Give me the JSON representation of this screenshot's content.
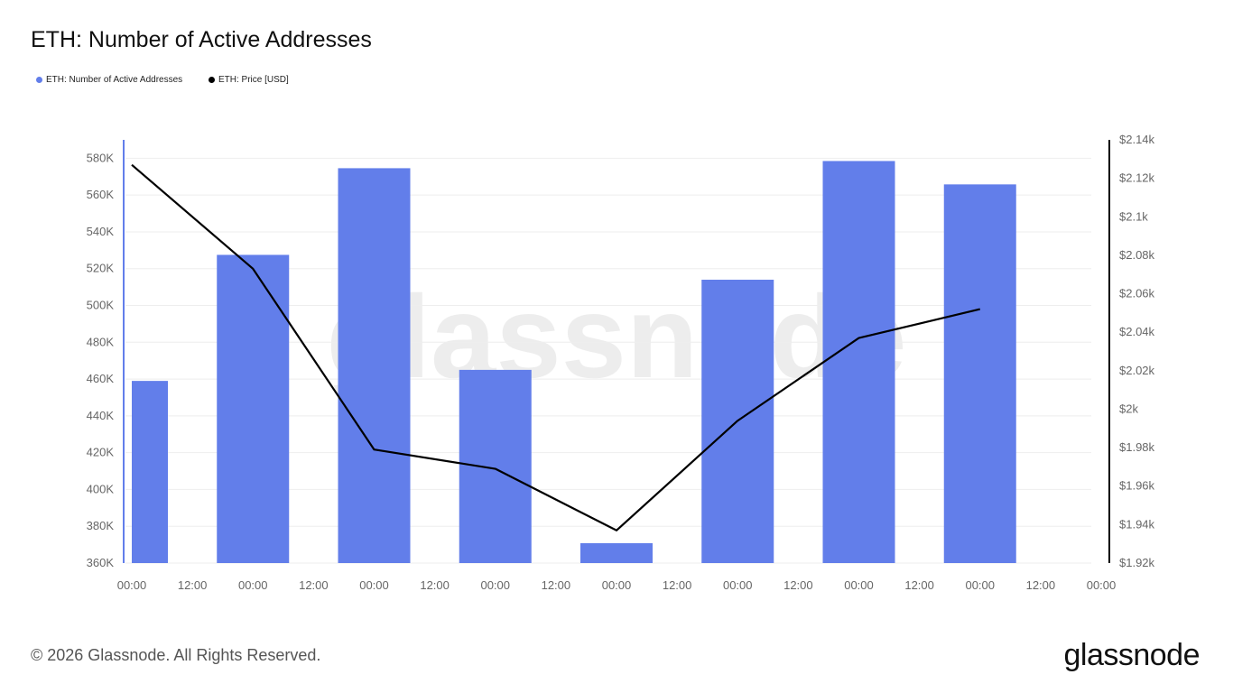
{
  "title": "ETH: Number of Active Addresses",
  "footer": "© 2026 Glassnode. All Rights Reserved.",
  "logo": "glassnode",
  "watermark": "glassnode",
  "chart_data": {
    "type": "bar",
    "title": "ETH: Number of Active Addresses",
    "legend": "top-left",
    "grid": true,
    "x_tick_labels": [
      "00:00",
      "12:00",
      "00:00",
      "12:00",
      "00:00",
      "12:00",
      "00:00",
      "12:00",
      "00:00",
      "12:00",
      "00:00",
      "12:00",
      "00:00",
      "12:00",
      "00:00",
      "12:00",
      "00:00"
    ],
    "series": [
      {
        "name": "ETH: Number of Active Addresses",
        "type": "bar",
        "axis": "left",
        "color": "#627EEA",
        "values": [
          459000,
          527500,
          574600,
          465000,
          370800,
          514000,
          578500,
          565800
        ]
      },
      {
        "name": "ETH: Price [USD]",
        "type": "line",
        "axis": "right",
        "color": "#000000",
        "values": [
          2127,
          2073,
          1979,
          1969,
          1937,
          1994,
          2037,
          2052
        ]
      }
    ],
    "left_axis": {
      "ticks": [
        "360K",
        "380K",
        "400K",
        "420K",
        "440K",
        "460K",
        "480K",
        "500K",
        "520K",
        "540K",
        "560K",
        "580K"
      ],
      "range": [
        360000,
        590000
      ]
    },
    "right_axis": {
      "ticks": [
        "$1.92k",
        "$1.94k",
        "$1.96k",
        "$1.98k",
        "$2k",
        "$2.02k",
        "$2.04k",
        "$2.06k",
        "$2.08k",
        "$2.1k",
        "$2.12k",
        "$2.14k"
      ],
      "range": [
        1920,
        2140
      ]
    }
  }
}
